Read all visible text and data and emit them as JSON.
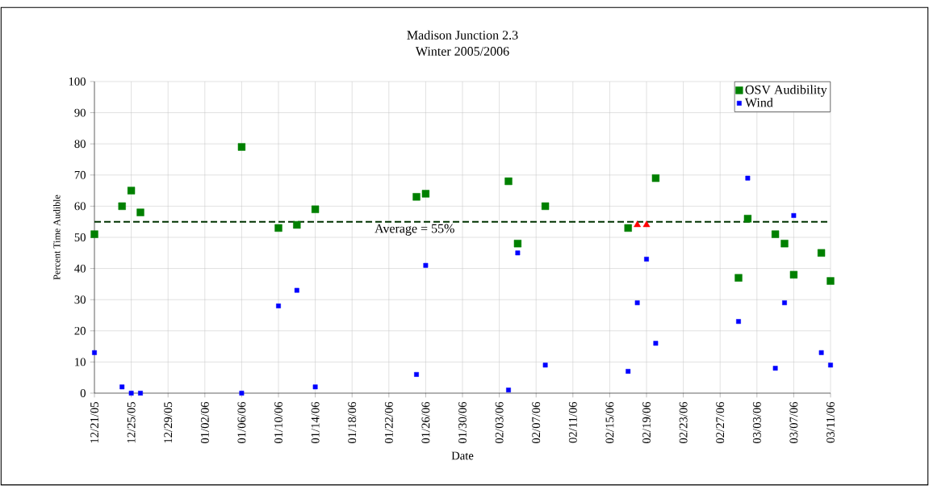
{
  "chart_data": {
    "type": "scatter",
    "title": "Madison Junction 2.3",
    "subtitle": "Winter 2005/2006",
    "xlabel": "Date",
    "ylabel": "Percent Time Audible",
    "xlim": [
      "2005-12-21",
      "2006-03-11"
    ],
    "ylim": [
      0,
      100
    ],
    "yticks": [
      0,
      10,
      20,
      30,
      40,
      50,
      60,
      70,
      80,
      90,
      100
    ],
    "xticks": [
      {
        "value": "2005-12-21",
        "label": "12/21/05"
      },
      {
        "value": "2005-12-25",
        "label": "12/25/05"
      },
      {
        "value": "2005-12-29",
        "label": "12/29/05"
      },
      {
        "value": "2006-01-02",
        "label": "01/02/06"
      },
      {
        "value": "2006-01-06",
        "label": "01/06/06"
      },
      {
        "value": "2006-01-10",
        "label": "01/10/06"
      },
      {
        "value": "2006-01-14",
        "label": "01/14/06"
      },
      {
        "value": "2006-01-18",
        "label": "01/18/06"
      },
      {
        "value": "2006-01-22",
        "label": "01/22/06"
      },
      {
        "value": "2006-01-26",
        "label": "01/26/06"
      },
      {
        "value": "2006-01-30",
        "label": "01/30/06"
      },
      {
        "value": "2006-02-03",
        "label": "02/03/06"
      },
      {
        "value": "2006-02-07",
        "label": "02/07/06"
      },
      {
        "value": "2006-02-11",
        "label": "02/11/06"
      },
      {
        "value": "2006-02-15",
        "label": "02/15/06"
      },
      {
        "value": "2006-02-19",
        "label": "02/19/06"
      },
      {
        "value": "2006-02-23",
        "label": "02/23/06"
      },
      {
        "value": "2006-02-27",
        "label": "02/27/06"
      },
      {
        "value": "2006-03-03",
        "label": "03/03/06"
      },
      {
        "value": "2006-03-07",
        "label": "03/07/06"
      },
      {
        "value": "2006-03-11",
        "label": "03/11/06"
      }
    ],
    "grid": true,
    "legend": "top right",
    "series": [
      {
        "name": "OSV Audibility",
        "color": "#008000",
        "marker": "square",
        "x": [
          "2005-12-21",
          "2005-12-24",
          "2005-12-25",
          "2005-12-26",
          "2006-01-06",
          "2006-01-10",
          "2006-01-12",
          "2006-01-14",
          "2006-01-25",
          "2006-01-26",
          "2006-02-04",
          "2006-02-05",
          "2006-02-08",
          "2006-02-17",
          "2006-02-20",
          "2006-03-01",
          "2006-03-02",
          "2006-03-05",
          "2006-03-06",
          "2006-03-07",
          "2006-03-10",
          "2006-03-11"
        ],
        "values": [
          51,
          60,
          65,
          58,
          79,
          53,
          54,
          59,
          63,
          64,
          68,
          48,
          60,
          53,
          69,
          37,
          56,
          51,
          48,
          38,
          45,
          36
        ]
      },
      {
        "color": "#ff0000",
        "marker": "triangle",
        "x": [
          "2006-02-18",
          "2006-02-19"
        ],
        "values": [
          54,
          54
        ]
      },
      {
        "name": "Wind",
        "color": "#0000ff",
        "marker": "square",
        "x": [
          "2005-12-21",
          "2005-12-24",
          "2005-12-25",
          "2005-12-26",
          "2006-01-06",
          "2006-01-10",
          "2006-01-12",
          "2006-01-14",
          "2006-01-25",
          "2006-01-26",
          "2006-02-04",
          "2006-02-05",
          "2006-02-08",
          "2006-02-17",
          "2006-02-18",
          "2006-02-19",
          "2006-02-20",
          "2006-03-01",
          "2006-03-02",
          "2006-03-05",
          "2006-03-06",
          "2006-03-07",
          "2006-03-10",
          "2006-03-11"
        ],
        "values": [
          13,
          2,
          0,
          0,
          0,
          28,
          33,
          2,
          6,
          41,
          1,
          45,
          9,
          7,
          29,
          43,
          16,
          23,
          69,
          8,
          29,
          57,
          13,
          9
        ]
      }
    ],
    "ref_lines": [
      {
        "axis": "y",
        "value": 55,
        "label": "Average = 55%",
        "color": "#003300",
        "line_style": "dashed"
      }
    ]
  }
}
